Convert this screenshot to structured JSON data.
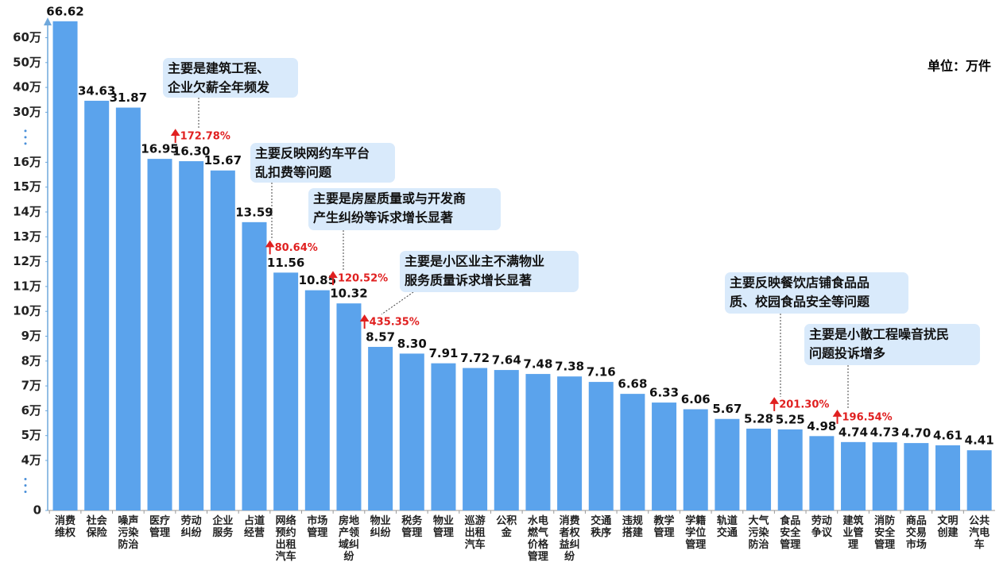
{
  "chart_data": {
    "type": "bar",
    "unit_label": "单位：万件",
    "categories": [
      "消费维权",
      "社会保险",
      "噪声污染防治",
      "医疗管理",
      "劳动纠纷",
      "企业服务",
      "占道经营",
      "网络预约出租汽车",
      "市场管理",
      "房地产领域纠纷",
      "物业纠纷",
      "税务管理",
      "物业管理",
      "巡游出租汽车",
      "公积金",
      "水电燃气价格管理",
      "消费者权益纠纷",
      "交通秩序",
      "违规搭建",
      "教学管理",
      "学籍学位管理",
      "轨道交通",
      "大气污染防治",
      "食品安全管理",
      "劳动争议",
      "建筑业管理",
      "消防安全管理",
      "商品交易市场",
      "文明创建",
      "公共汽电车"
    ],
    "values": [
      66.62,
      34.63,
      31.87,
      16.95,
      16.3,
      15.67,
      13.59,
      11.56,
      10.85,
      10.32,
      8.57,
      8.3,
      7.91,
      7.72,
      7.64,
      7.48,
      7.38,
      7.16,
      6.68,
      6.33,
      6.06,
      5.67,
      5.28,
      5.25,
      4.98,
      4.74,
      4.73,
      4.7,
      4.61,
      4.41
    ],
    "value_labels": [
      "66.62",
      "34.63",
      "31.87",
      "16.95",
      "16.30",
      "15.67",
      "13.59",
      "11.56",
      "10.85",
      "10.32",
      "8.57",
      "8.30",
      "7.91",
      "7.72",
      "7.64",
      "7.48",
      "7.38",
      "7.16",
      "6.68",
      "6.33",
      "6.06",
      "5.67",
      "5.28",
      "5.25",
      "4.98",
      "4.74",
      "4.73",
      "4.70",
      "4.61",
      "4.41"
    ],
    "color": "#5ba3ec",
    "ylim": [
      0,
      60
    ],
    "yticks": [
      0,
      {
        "value": 4,
        "label": "4万"
      },
      {
        "value": 5,
        "label": "5万"
      },
      {
        "value": 6,
        "label": "6万"
      },
      {
        "value": 7,
        "label": "7万"
      },
      {
        "value": 8,
        "label": "8万"
      },
      {
        "value": 9,
        "label": "9万"
      },
      {
        "value": 10,
        "label": "10万"
      },
      {
        "value": 11,
        "label": "11万"
      },
      {
        "value": 12,
        "label": "12万"
      },
      {
        "value": 13,
        "label": "13万"
      },
      {
        "value": 14,
        "label": "14万"
      },
      {
        "value": 15,
        "label": "15万"
      },
      {
        "value": 16,
        "label": "16万"
      },
      {
        "value": 30,
        "label": "30万"
      },
      {
        "value": 40,
        "label": "40万"
      },
      {
        "value": 50,
        "label": "50万"
      },
      {
        "value": 60,
        "label": "60万"
      }
    ],
    "annotations": [
      {
        "category": "劳动纠纷",
        "growth": "172.78%",
        "note": [
          "主要是建筑工程、",
          "企业欠薪全年频发"
        ]
      },
      {
        "category": "网络预约出租汽车",
        "growth": "80.64%",
        "note": [
          "主要反映网约车平台",
          "乱扣费等问题"
        ]
      },
      {
        "category": "房地产领域纠纷",
        "growth": "120.52%",
        "note": [
          "主要是房屋质量或与开发商",
          "产生纠纷等诉求增长显著"
        ]
      },
      {
        "category": "物业纠纷",
        "growth": "435.35%",
        "note": [
          "主要是小区业主不满物业",
          "服务质量诉求增长显著"
        ]
      },
      {
        "category": "食品安全管理",
        "growth": "201.30%",
        "note": [
          "主要反映餐饮店铺食品品",
          "质、校园食品安全等问题"
        ]
      },
      {
        "category": "建筑业管理",
        "growth": "196.54%",
        "note": [
          "主要是小散工程噪音扰民",
          "问题投诉增多"
        ]
      }
    ]
  }
}
